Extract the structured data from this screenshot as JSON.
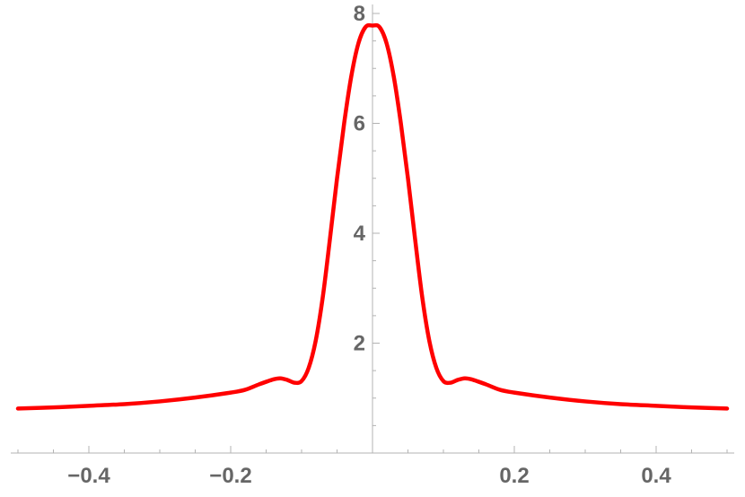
{
  "chart_data": {
    "type": "line",
    "title": "",
    "xlabel": "",
    "ylabel": "",
    "xlim": [
      -0.5,
      0.5
    ],
    "ylim": [
      0,
      8
    ],
    "grid": false,
    "legend": "none",
    "x_ticks": [
      {
        "value": -0.4,
        "label": "−0.4"
      },
      {
        "value": -0.2,
        "label": "−0.2"
      },
      {
        "value": 0.2,
        "label": "0.2"
      },
      {
        "value": 0.4,
        "label": "0.4"
      }
    ],
    "y_ticks": [
      {
        "value": 2,
        "label": "2"
      },
      {
        "value": 4,
        "label": "4"
      },
      {
        "value": 6,
        "label": "6"
      },
      {
        "value": 8,
        "label": "8"
      }
    ],
    "series": [
      {
        "color": "#ff0000",
        "x": [
          -0.5,
          -0.45,
          -0.4,
          -0.35,
          -0.3,
          -0.25,
          -0.2,
          -0.18,
          -0.16,
          -0.14,
          -0.13,
          -0.12,
          -0.11,
          -0.1,
          -0.09,
          -0.08,
          -0.07,
          -0.06,
          -0.05,
          -0.04,
          -0.03,
          -0.02,
          -0.01,
          0,
          0.01,
          0.02,
          0.03,
          0.04,
          0.05,
          0.06,
          0.07,
          0.08,
          0.09,
          0.1,
          0.11,
          0.12,
          0.13,
          0.14,
          0.16,
          0.18,
          0.2,
          0.25,
          0.3,
          0.35,
          0.4,
          0.45,
          0.5
        ],
        "y": [
          0.81,
          0.83,
          0.86,
          0.89,
          0.94,
          1.01,
          1.1,
          1.15,
          1.25,
          1.34,
          1.36,
          1.33,
          1.28,
          1.31,
          1.55,
          2.05,
          2.85,
          3.9,
          5.0,
          6.0,
          6.85,
          7.45,
          7.75,
          7.78,
          7.75,
          7.45,
          6.85,
          6.0,
          5.0,
          3.9,
          2.85,
          2.05,
          1.55,
          1.31,
          1.28,
          1.33,
          1.36,
          1.34,
          1.25,
          1.15,
          1.1,
          1.01,
          0.94,
          0.89,
          0.86,
          0.83,
          0.81
        ]
      }
    ]
  }
}
